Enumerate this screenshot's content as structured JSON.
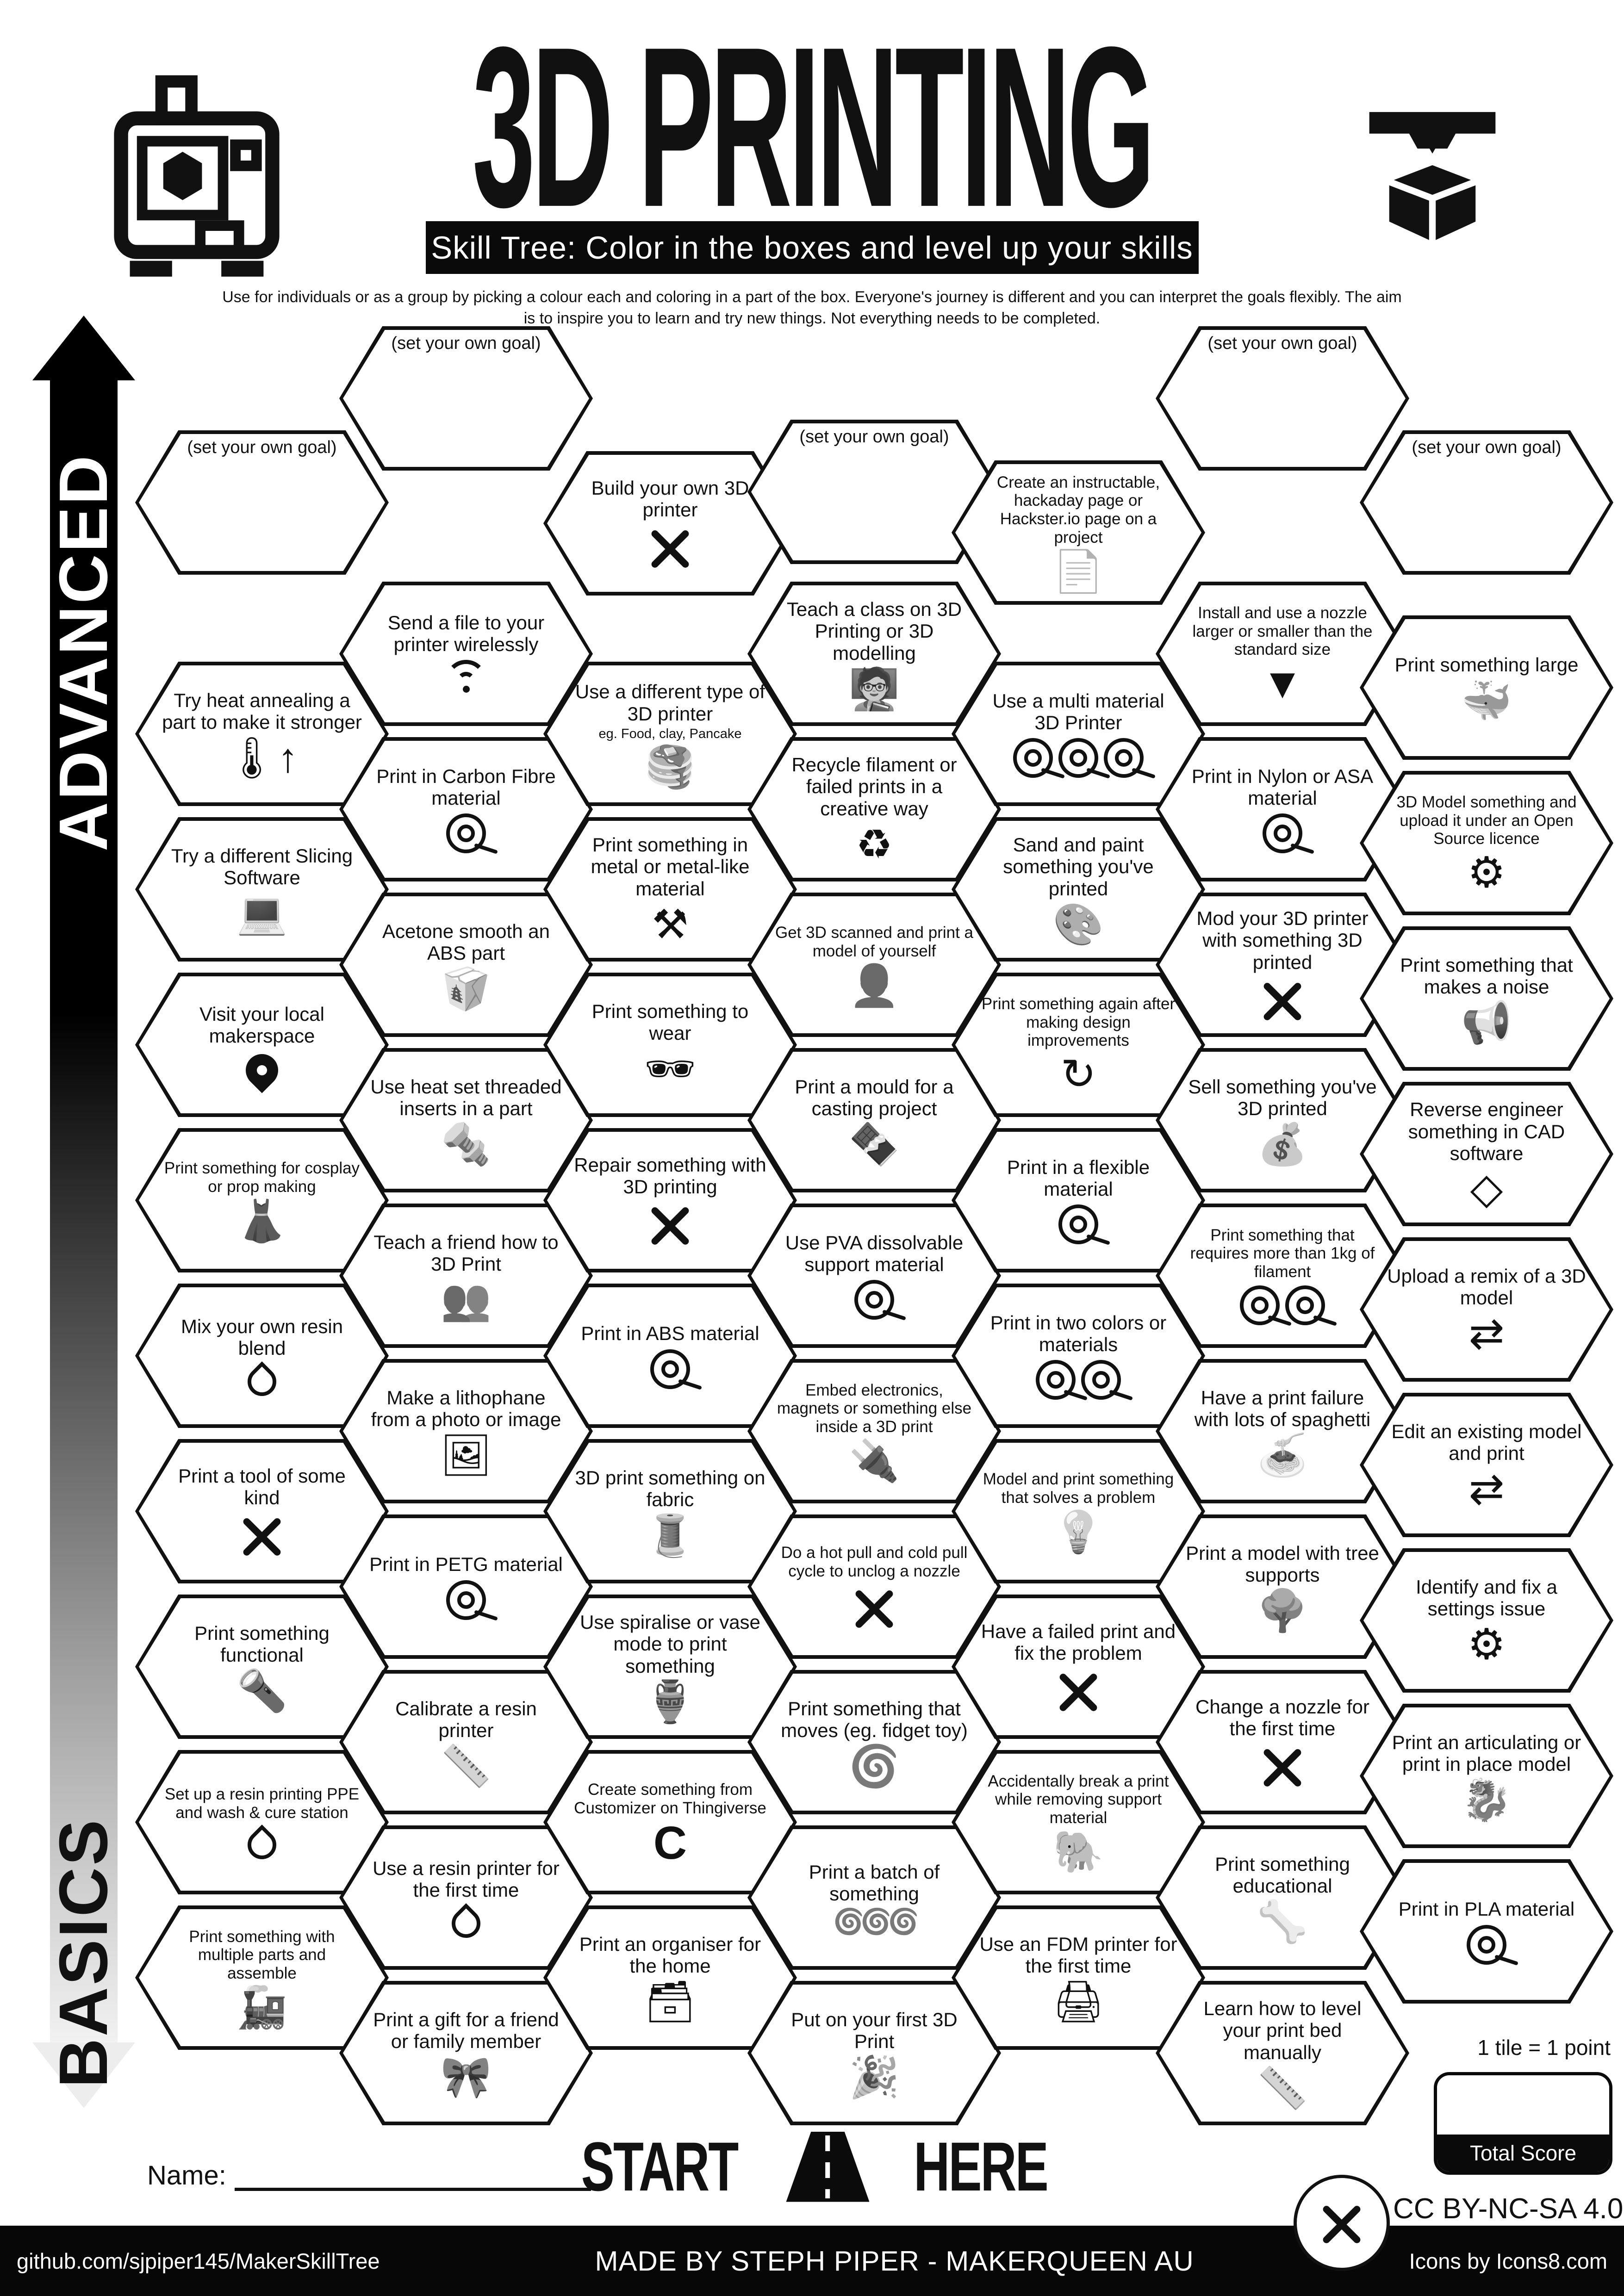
{
  "header": {
    "title": "3D PRINTING",
    "banner": "Skill Tree:  Color in the boxes and level up your skills",
    "subtitle": "Use for individuals or as a group by picking a colour each and coloring in a part of the box.  Everyone's journey is different and you can interpret the goals flexibly.  The aim is to inspire you to learn and try new things. Not everything needs to be completed."
  },
  "sidebar": {
    "top": "ADVANCED",
    "bottom": "BASICS"
  },
  "goal_label": "(set your own goal)",
  "start_here": {
    "start": "START",
    "here": "HERE"
  },
  "name_label": "Name:",
  "scoring": {
    "tile_note": "1 tile = 1 point",
    "total_label": "Total Score"
  },
  "license": "CC BY-NC-SA 4.0",
  "footer": {
    "left": "github.com/sjpiper145/MakerSkillTree",
    "center": "MADE BY STEPH PIPER  -  MAKERQUEEN AU",
    "right": "Icons by Icons8.com"
  },
  "columns": [
    {
      "name": "column-1",
      "tiles": [
        {
          "goal": true
        },
        {
          "label": "Try heat annealing a part to make it stronger",
          "icon": "thermometer-up-icon",
          "glyph": "🌡↑"
        },
        {
          "label": "Try a different Slicing Software",
          "icon": "laptop-gear-icon",
          "glyph": "💻"
        },
        {
          "label": "Visit your local makerspace",
          "icon": "map-pin-icon",
          "glyph": "css:pin"
        },
        {
          "label": "Print something for cosplay or prop making",
          "icon": "mannequin-icon",
          "glyph": "👗",
          "small": true
        },
        {
          "label": "Mix your own resin blend",
          "icon": "resin-droplet-icon",
          "glyph": "css:drop"
        },
        {
          "label": "Print a tool of some kind",
          "icon": "tools-icon",
          "glyph": "css:tools"
        },
        {
          "label": "Print something functional",
          "icon": "desk-lamp-icon",
          "glyph": "🔦"
        },
        {
          "label": "Set up a resin printing PPE and wash & cure station",
          "icon": "resin-droplet-icon",
          "glyph": "css:drop",
          "small": true
        },
        {
          "label": "Print something with multiple parts and assemble",
          "icon": "train-icon",
          "glyph": "🚂",
          "small": true
        }
      ]
    },
    {
      "name": "column-2",
      "tiles": [
        {
          "goal": true
        },
        {
          "label": "Send a file to your printer wirelessly",
          "icon": "wifi-icon",
          "glyph": "css:wifi"
        },
        {
          "label": "Print in Carbon Fibre material",
          "icon": "filament-spool-icon",
          "glyph": "css:spool"
        },
        {
          "label": "Acetone smooth an ABS part",
          "icon": "container-icon",
          "glyph": "🥡"
        },
        {
          "label": "Use heat set threaded inserts in a part",
          "icon": "screw-icon",
          "glyph": "🔩"
        },
        {
          "label": "Teach a friend how to 3D Print",
          "icon": "two-friends-icon",
          "glyph": "👥"
        },
        {
          "label": "Make a lithophane from a photo or image",
          "icon": "photo-icon",
          "glyph": "🖼"
        },
        {
          "label": "Print in PETG material",
          "icon": "filament-spool-icon",
          "glyph": "css:spool"
        },
        {
          "label": "Calibrate a resin printer",
          "icon": "ruler-icon",
          "glyph": "📏"
        },
        {
          "label": "Use a resin printer for the first time",
          "icon": "resin-droplet-icon",
          "glyph": "css:drop"
        },
        {
          "label": "Print a gift for a friend or family member",
          "icon": "gift-bow-icon",
          "glyph": "🎀"
        }
      ]
    },
    {
      "name": "column-3",
      "tiles": [
        {
          "label": "Build your own 3D printer",
          "icon": "build-tools-icon",
          "glyph": "css:tools"
        },
        {
          "label": "Use a different type of 3D printer",
          "sub": "eg. Food, clay, Pancake",
          "icon": "pancake-icon",
          "glyph": "🥞"
        },
        {
          "label": "Print something in metal or metal-like material",
          "icon": "anvil-icon",
          "glyph": "⚒"
        },
        {
          "label": "Print something to wear",
          "icon": "sunglasses-icon",
          "glyph": "🕶"
        },
        {
          "label": "Repair something with 3D printing",
          "icon": "repair-tools-icon",
          "glyph": "css:tools"
        },
        {
          "label": "Print in ABS material",
          "icon": "filament-spool-icon",
          "glyph": "css:spool"
        },
        {
          "label": "3D print something on fabric",
          "icon": "fabric-icon",
          "glyph": "🧵"
        },
        {
          "label": "Use spiralise or vase mode to print something",
          "icon": "vase-icon",
          "glyph": "🏺"
        },
        {
          "label": "Create something from Customizer on Thingiverse",
          "icon": "customizer-c-icon",
          "glyph": "letter:C",
          "small": true
        },
        {
          "label": "Print an organiser for the home",
          "icon": "organiser-icon",
          "glyph": "🗃"
        }
      ]
    },
    {
      "name": "column-4",
      "tiles": [
        {
          "goal": true
        },
        {
          "label": "Teach a class on 3D Printing or 3D modelling",
          "icon": "teacher-icon",
          "glyph": "🧑‍🏫"
        },
        {
          "label": "Recycle filament or failed prints in a creative way",
          "icon": "recycle-icon",
          "glyph": "♻"
        },
        {
          "label": "Get 3D scanned and print a model of yourself",
          "icon": "body-scan-icon",
          "glyph": "👤",
          "small": true
        },
        {
          "label": "Print a mould for a casting project",
          "icon": "mould-tray-icon",
          "glyph": "🍫"
        },
        {
          "label": "Use PVA dissolvable support material",
          "icon": "filament-spool-icon",
          "glyph": "css:spool"
        },
        {
          "label": "Embed electronics, magnets or something else inside a 3D print",
          "icon": "led-icon",
          "glyph": "🔌",
          "small": true
        },
        {
          "label": "Do a hot pull and cold pull cycle to unclog a nozzle",
          "icon": "unclog-tools-icon",
          "glyph": "css:tools",
          "small": true
        },
        {
          "label": "Print something that moves (eg. fidget toy)",
          "icon": "fidget-spinner-icon",
          "glyph": "🌀"
        },
        {
          "label": "Print a batch of something",
          "icon": "batch-spinners-icon",
          "glyph": "🌀🌀🌀",
          "row": true
        },
        {
          "label": "Put on your first 3D Print",
          "icon": "party-popper-icon",
          "glyph": "🎉"
        }
      ]
    },
    {
      "name": "column-5",
      "tiles": [
        {
          "label": "Create an instructable, hackaday page or Hackster.io page on a project",
          "icon": "document-icon",
          "glyph": "📄",
          "small": true
        },
        {
          "label": "Use a multi material 3D Printer",
          "icon": "multi-spool-icon",
          "glyph": "css:spool,spool,spool"
        },
        {
          "label": "Sand and paint something you've printed",
          "icon": "paint-icon",
          "glyph": "🎨"
        },
        {
          "label": "Print something again after making design improvements",
          "icon": "improve-arrow-icon",
          "glyph": "sym:↻",
          "small": true
        },
        {
          "label": "Print in a flexible material",
          "icon": "filament-spool-icon",
          "glyph": "css:spool"
        },
        {
          "label": "Print in two colors or materials",
          "icon": "two-spool-icon",
          "glyph": "css:spool,spool"
        },
        {
          "label": "Model and print something that solves a problem",
          "icon": "lightbulb-icon",
          "glyph": "💡",
          "small": true
        },
        {
          "label": "Have a failed print and fix the problem",
          "icon": "fix-tools-icon",
          "glyph": "css:tools"
        },
        {
          "label": "Accidentally break a print while removing support material",
          "icon": "elephant-icon",
          "glyph": "🐘",
          "small": true
        },
        {
          "label": "Use an FDM printer for the first time",
          "icon": "fdm-printer-icon",
          "glyph": "🖨"
        }
      ]
    },
    {
      "name": "column-6",
      "tiles": [
        {
          "goal": true
        },
        {
          "label": "Install and use a nozzle larger or smaller than the standard size",
          "icon": "nozzle-icon",
          "glyph": "sym:▼",
          "small": true
        },
        {
          "label": "Print in Nylon or ASA material",
          "icon": "filament-spool-icon",
          "glyph": "css:spool"
        },
        {
          "label": "Mod your 3D printer with something 3D printed",
          "icon": "mod-tools-icon",
          "glyph": "css:tools"
        },
        {
          "label": "Sell something you've 3D printed",
          "icon": "money-bag-icon",
          "glyph": "💰"
        },
        {
          "label": "Print something that requires more than 1kg of filament",
          "icon": "two-spool-icon",
          "glyph": "css:spool,spool",
          "small": true
        },
        {
          "label": "Have a print failure with lots of spaghetti",
          "icon": "spaghetti-icon",
          "glyph": "🍝"
        },
        {
          "label": "Print a model with tree supports",
          "icon": "tree-icon",
          "glyph": "🌳"
        },
        {
          "label": "Change a nozzle for the first time",
          "icon": "change-nozzle-tools-icon",
          "glyph": "css:tools"
        },
        {
          "label": "Print something educational",
          "icon": "spine-icon",
          "glyph": "🦴"
        },
        {
          "label": "Learn how to level your print bed manually",
          "icon": "level-ruler-icon",
          "glyph": "📏"
        }
      ]
    },
    {
      "name": "column-7",
      "tiles": [
        {
          "goal": true
        },
        {
          "label": "Print something large",
          "icon": "whale-icon",
          "glyph": "🐳"
        },
        {
          "label": "3D Model something and upload it under an Open Source licence",
          "icon": "open-source-gear-icon",
          "glyph": "sym:⚙",
          "small": true
        },
        {
          "label": "Print something that makes a noise",
          "icon": "whistle-icon",
          "glyph": "📢"
        },
        {
          "label": "Reverse engineer something in CAD software",
          "icon": "cad-cube-icon",
          "glyph": "sym:◇"
        },
        {
          "label": "Upload a remix of a 3D model",
          "icon": "remix-arrows-icon",
          "glyph": "sym:⇄"
        },
        {
          "label": "Edit an existing model and print",
          "icon": "remix-arrows-icon",
          "glyph": "sym:⇄"
        },
        {
          "label": "Identify and fix a settings issue",
          "icon": "gear-icon",
          "glyph": "sym:⚙"
        },
        {
          "label": "Print an articulating or print in place model",
          "icon": "dragon-icon",
          "glyph": "🐉"
        },
        {
          "label": "Print in PLA material",
          "icon": "filament-spool-icon",
          "glyph": "css:spool"
        }
      ]
    }
  ]
}
